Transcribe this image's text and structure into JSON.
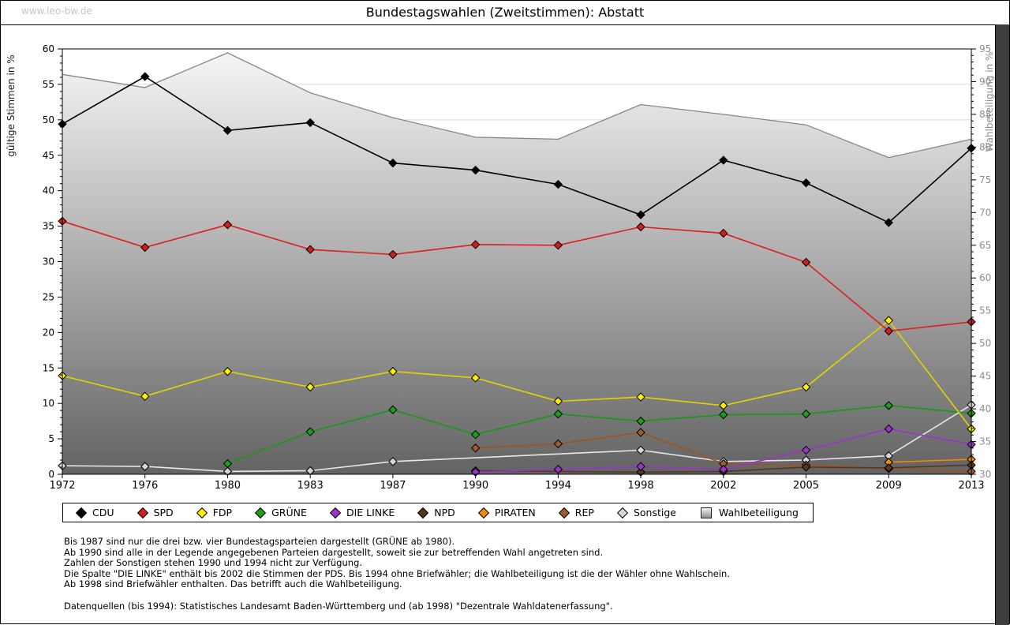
{
  "page": {
    "watermark": "www.leo-bw.de",
    "title": "Bundestagswahlen (Zweitstimmen): Abstatt"
  },
  "chart_data": {
    "type": "line",
    "title": "Bundestagswahlen (Zweitstimmen): Abstatt",
    "categories": [
      1972,
      1976,
      1980,
      1983,
      1987,
      1990,
      1994,
      1998,
      2002,
      2005,
      2009,
      2013
    ],
    "y_left_axis": {
      "label": "gültige Stimmen in %",
      "min": 0,
      "max": 60,
      "tick_step": 5
    },
    "y_right_axis": {
      "label": "Wahlbeteiligung in %",
      "min": 30,
      "max": 95,
      "tick_step": 5
    },
    "grid": true,
    "legend_position": "bottom",
    "series": [
      {
        "name": "CDU",
        "axis": "left",
        "style": "line",
        "color": "#000000",
        "fill": "#000000",
        "values": [
          49.4,
          56.1,
          48.5,
          49.6,
          43.9,
          42.9,
          40.9,
          36.6,
          44.3,
          41.1,
          35.5,
          46.0
        ]
      },
      {
        "name": "SPD",
        "axis": "left",
        "style": "line",
        "color": "#dc1f1f",
        "fill": "#d31c1c",
        "values": [
          35.7,
          32.0,
          35.2,
          31.7,
          31.0,
          32.4,
          32.3,
          34.9,
          34.0,
          29.9,
          20.2,
          21.5
        ]
      },
      {
        "name": "FDP",
        "axis": "left",
        "style": "line",
        "color": "#e3d200",
        "fill": "#ffef00",
        "values": [
          13.9,
          11.0,
          14.5,
          12.3,
          14.5,
          13.6,
          10.3,
          10.9,
          9.7,
          12.3,
          21.7,
          6.4
        ]
      },
      {
        "name": "GRÜNE",
        "axis": "left",
        "style": "line",
        "color": "#169a16",
        "fill": "#1aa01a",
        "values": [
          null,
          null,
          1.5,
          6.0,
          9.1,
          5.6,
          8.5,
          7.5,
          8.4,
          8.5,
          9.7,
          8.6
        ]
      },
      {
        "name": "DIE LINKE",
        "axis": "left",
        "style": "line",
        "color": "#9b33cc",
        "fill": "#9b33cc",
        "values": [
          null,
          null,
          null,
          null,
          null,
          0.3,
          0.7,
          1.1,
          0.7,
          3.4,
          6.4,
          4.2
        ]
      },
      {
        "name": "NPD",
        "axis": "left",
        "style": "line",
        "color": "#54381f",
        "fill": "#54381f",
        "values": [
          null,
          null,
          null,
          null,
          null,
          0.5,
          null,
          0.3,
          0.4,
          1.0,
          0.9,
          1.3
        ]
      },
      {
        "name": "PIRATEN",
        "axis": "left",
        "style": "line",
        "color": "#ef8c00",
        "fill": "#ef8c00",
        "values": [
          null,
          null,
          null,
          null,
          null,
          null,
          null,
          null,
          null,
          null,
          1.7,
          2.1
        ]
      },
      {
        "name": "REP",
        "axis": "left",
        "style": "line",
        "color": "#9e5420",
        "fill": "#a05a2c",
        "values": [
          null,
          null,
          null,
          null,
          null,
          3.7,
          4.3,
          5.9,
          1.5,
          1.3,
          0.8,
          0.4
        ]
      },
      {
        "name": "Sonstige",
        "axis": "left",
        "style": "line",
        "color": "#e8e8e8",
        "fill": "#d6d6d6",
        "values": [
          1.2,
          1.1,
          0.4,
          0.5,
          1.8,
          null,
          null,
          3.4,
          1.8,
          2.0,
          2.6,
          9.8
        ]
      },
      {
        "name": "Wahlbeteiligung",
        "axis": "right",
        "style": "area",
        "color": "#868686",
        "fill": "gradient",
        "values": [
          91.1,
          89.1,
          94.4,
          88.3,
          84.5,
          81.5,
          81.2,
          86.5,
          85.0,
          83.4,
          78.4,
          81.2
        ]
      }
    ]
  },
  "footnotes": {
    "lines": [
      "Bis 1987 sind nur die drei bzw. vier Bundestagsparteien dargestellt (GRÜNE ab 1980).",
      "Ab 1990 sind alle in der Legende angegebenen Parteien dargestellt, soweit sie zur betreffenden Wahl angetreten sind.",
      "Zahlen der Sonstigen stehen 1990 und 1994 nicht zur Verfügung.",
      "Die Spalte \"DIE LINKE\" enthält bis 2002 die Stimmen der PDS. Bis 1994 ohne Briefwähler; die Wahlbeteiligung ist die der Wähler ohne Wahlschein.",
      "Ab 1998 sind Briefwähler enthalten. Das betrifft auch die Wahlbeteiligung."
    ],
    "source": "Datenquellen (bis 1994): Statistisches Landesamt Baden-Württemberg und (ab 1998) \"Dezentrale Wahldatenerfassung\"."
  }
}
